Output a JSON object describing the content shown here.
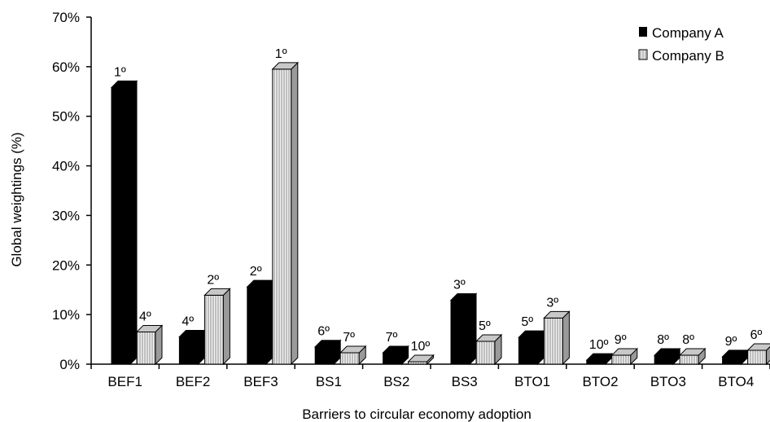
{
  "chart_data": {
    "type": "bar",
    "xlabel": "Barriers to circular economy adoption",
    "ylabel": "Global weightings (%)",
    "ylim": [
      0,
      70
    ],
    "yticks": [
      "0%",
      "10%",
      "20%",
      "30%",
      "40%",
      "50%",
      "60%",
      "70%"
    ],
    "legend_position": "top-right",
    "categories": [
      "BEF1",
      "BEF2",
      "BEF3",
      "BS1",
      "BS2",
      "BS3",
      "BTO1",
      "BTO2",
      "BTO3",
      "BTO4"
    ],
    "series": [
      {
        "name": "Company A",
        "color": "#000000",
        "values": [
          55.8,
          5.5,
          15.6,
          3.5,
          2.3,
          12.9,
          5.4,
          0.8,
          1.8,
          1.5
        ],
        "ranks": [
          "1º",
          "4º",
          "2º",
          "6º",
          "7º",
          "3º",
          "5º",
          "10º",
          "8º",
          "9º"
        ]
      },
      {
        "name": "Company B",
        "color": "#e6e6e6",
        "values": [
          6.5,
          13.9,
          59.5,
          2.3,
          0.5,
          4.6,
          9.3,
          1.8,
          1.8,
          2.8
        ],
        "ranks": [
          "4º",
          "2º",
          "1º",
          "7º",
          "10º",
          "5º",
          "3º",
          "9º",
          "8º",
          "6º"
        ]
      }
    ]
  }
}
